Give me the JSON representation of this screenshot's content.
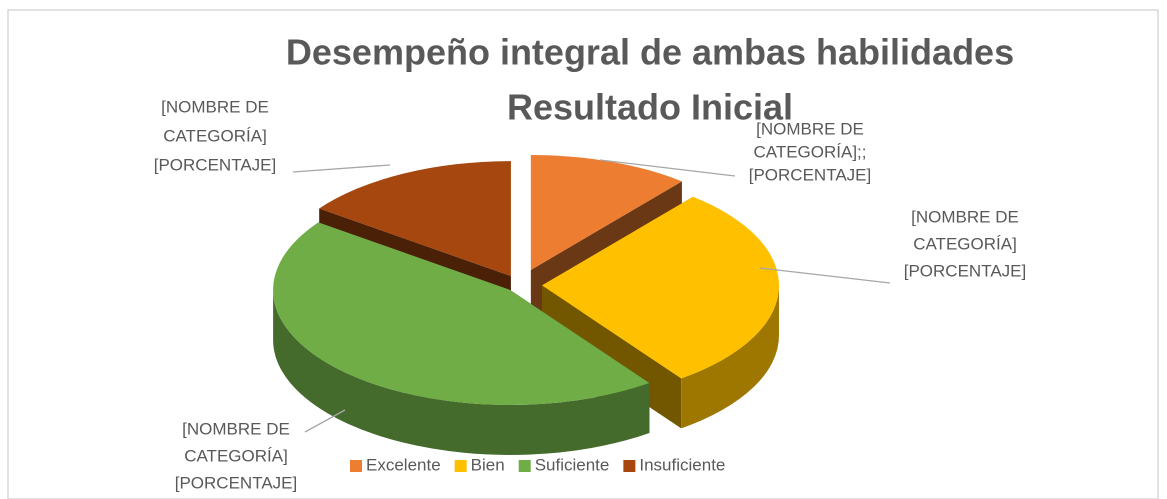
{
  "chart_data": {
    "type": "pie3d",
    "title": "Desempeño integral de ambas habilidades",
    "subtitle": "Resultado Inicial",
    "categories": [
      "Excelente",
      "Bien",
      "Suficiente",
      "Insuficiente"
    ],
    "values": [
      11,
      29,
      45,
      15
    ],
    "colors": [
      "#ed7d31",
      "#ffc000",
      "#70ad47",
      "#a5470f"
    ],
    "data_labels": [
      [
        "[NOMBRE DE",
        "CATEGORÍA];;",
        "[PORCENTAJE]"
      ],
      [
        "[NOMBRE DE",
        "CATEGORÍA]",
        "[PORCENTAJE]"
      ],
      [
        "[NOMBRE DE",
        "CATEGORÍA]",
        "[PORCENTAJE]"
      ],
      [
        "[NOMBRE DE",
        "CATEGORÍA]",
        "[PORCENTAJE]"
      ]
    ],
    "legend": "bottom"
  }
}
